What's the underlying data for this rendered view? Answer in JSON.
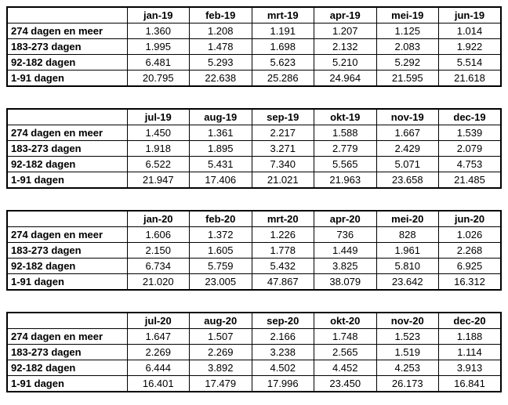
{
  "colors": {
    "border": "#000000",
    "background": "#ffffff",
    "text": "#000000"
  },
  "chart_data": [
    {
      "type": "table",
      "columns": [
        "jan-19",
        "feb-19",
        "mrt-19",
        "apr-19",
        "mei-19",
        "jun-19"
      ],
      "row_labels": [
        "274 dagen en meer",
        "183-273 dagen",
        "92-182 dagen",
        "1-91 dagen"
      ],
      "rows": [
        [
          "1.360",
          "1.208",
          "1.191",
          "1.207",
          "1.125",
          "1.014"
        ],
        [
          "1.995",
          "1.478",
          "1.698",
          "2.132",
          "2.083",
          "1.922"
        ],
        [
          "6.481",
          "5.293",
          "5.623",
          "5.210",
          "5.292",
          "5.514"
        ],
        [
          "20.795",
          "22.638",
          "25.286",
          "24.964",
          "21.595",
          "21.618"
        ]
      ]
    },
    {
      "type": "table",
      "columns": [
        "jul-19",
        "aug-19",
        "sep-19",
        "okt-19",
        "nov-19",
        "dec-19"
      ],
      "row_labels": [
        "274 dagen en meer",
        "183-273 dagen",
        "92-182 dagen",
        "1-91 dagen"
      ],
      "rows": [
        [
          "1.450",
          "1.361",
          "2.217",
          "1.588",
          "1.667",
          "1.539"
        ],
        [
          "1.918",
          "1.895",
          "3.271",
          "2.779",
          "2.429",
          "2.079"
        ],
        [
          "6.522",
          "5.431",
          "7.340",
          "5.565",
          "5.071",
          "4.753"
        ],
        [
          "21.947",
          "17.406",
          "21.021",
          "21.963",
          "23.658",
          "21.485"
        ]
      ]
    },
    {
      "type": "table",
      "columns": [
        "jan-20",
        "feb-20",
        "mrt-20",
        "apr-20",
        "mei-20",
        "jun-20"
      ],
      "row_labels": [
        "274 dagen en meer",
        "183-273 dagen",
        "92-182 dagen",
        "1-91 dagen"
      ],
      "rows": [
        [
          "1.606",
          "1.372",
          "1.226",
          "736",
          "828",
          "1.026"
        ],
        [
          "2.150",
          "1.605",
          "1.778",
          "1.449",
          "1.961",
          "2.268"
        ],
        [
          "6.734",
          "5.759",
          "5.432",
          "3.825",
          "5.810",
          "6.925"
        ],
        [
          "21.020",
          "23.005",
          "47.867",
          "38.079",
          "23.642",
          "16.312"
        ]
      ]
    },
    {
      "type": "table",
      "columns": [
        "jul-20",
        "aug-20",
        "sep-20",
        "okt-20",
        "nov-20",
        "dec-20"
      ],
      "row_labels": [
        "274 dagen en meer",
        "183-273 dagen",
        "92-182 dagen",
        "1-91 dagen"
      ],
      "rows": [
        [
          "1.647",
          "1.507",
          "2.166",
          "1.748",
          "1.523",
          "1.188"
        ],
        [
          "2.269",
          "2.269",
          "3.238",
          "2.565",
          "1.519",
          "1.114"
        ],
        [
          "6.444",
          "3.892",
          "4.502",
          "4.452",
          "4.253",
          "3.913"
        ],
        [
          "16.401",
          "17.479",
          "17.996",
          "23.450",
          "26.173",
          "16.841"
        ]
      ]
    }
  ]
}
